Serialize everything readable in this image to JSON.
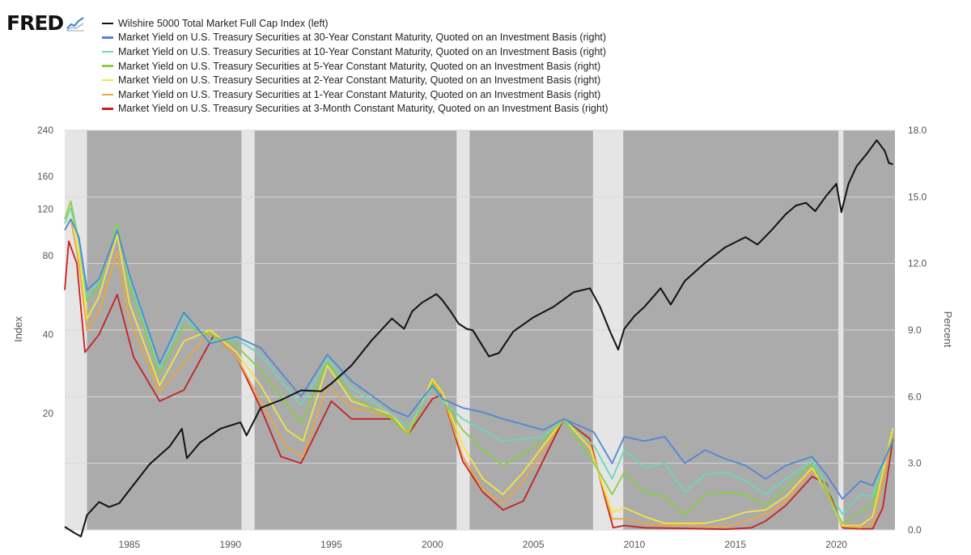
{
  "logo": {
    "text": "FRED"
  },
  "chart_data": {
    "type": "line",
    "colors": {
      "plot_background": "#ababab",
      "recession": "#e5e5e5",
      "gridline": "#d8d8d8"
    },
    "legend_position": "top",
    "x_ticks": [
      "1985",
      "1990",
      "1995",
      "2000",
      "2005",
      "2010",
      "2015",
      "2020"
    ],
    "xlim": [
      1981.8,
      2022.9
    ],
    "left_axis": {
      "label": "Index",
      "scale": "log",
      "range": [
        7.2,
        240
      ],
      "ticks": [
        "20",
        "40",
        "80",
        "120",
        "160",
        "240"
      ]
    },
    "right_axis": {
      "label": "Percent",
      "scale": "linear",
      "range": [
        0,
        18
      ],
      "ticks": [
        "0.0",
        "3.0",
        "6.0",
        "9.0",
        "12.0",
        "15.0",
        "18.0"
      ]
    },
    "recessions": [
      [
        1981.5,
        1982.9
      ],
      [
        1990.55,
        1991.2
      ],
      [
        2001.2,
        2001.85
      ],
      [
        2007.95,
        2009.45
      ],
      [
        2020.1,
        2020.35
      ]
    ],
    "series": [
      {
        "name": "Wilshire 5000 Total Market Full Cap Index (left)",
        "color": "#111111",
        "axis": "left",
        "x": [
          1981.8,
          1982.3,
          1982.6,
          1982.9,
          1983.5,
          1984.0,
          1984.5,
          1985.0,
          1986.0,
          1987.0,
          1987.6,
          1987.85,
          1988.5,
          1989.5,
          1990.0,
          1990.5,
          1990.8,
          1991.5,
          1992.5,
          1993.5,
          1994.5,
          1995.0,
          1996.0,
          1997.0,
          1998.0,
          1998.6,
          1999.0,
          1999.5,
          2000.2,
          2000.5,
          2000.9,
          2001.3,
          2001.7,
          2002.0,
          2002.5,
          2002.8,
          2003.3,
          2004.0,
          2005.0,
          2006.0,
          2007.0,
          2007.8,
          2008.3,
          2008.8,
          2009.2,
          2009.5,
          2010.0,
          2010.5,
          2011.3,
          2011.8,
          2012.5,
          2013.5,
          2014.5,
          2015.5,
          2016.1,
          2016.8,
          2017.5,
          2018.0,
          2018.5,
          2018.95,
          2019.5,
          2020.0,
          2020.25,
          2020.6,
          2021.0,
          2021.5,
          2022.0,
          2022.4,
          2022.6,
          2022.8
        ],
        "y": [
          7.4,
          7.0,
          6.8,
          8.2,
          9.2,
          8.8,
          9.1,
          10.2,
          12.8,
          15.0,
          17.5,
          13.5,
          15.5,
          17.5,
          18.0,
          18.5,
          16.5,
          21.0,
          22.5,
          24.5,
          24.3,
          26.0,
          30.5,
          38.0,
          46.0,
          42.0,
          49.0,
          53.0,
          57.0,
          54.0,
          49.0,
          44.0,
          42.0,
          41.5,
          36.0,
          33.0,
          34.0,
          41.0,
          46.5,
          51.0,
          58.0,
          60.0,
          51.0,
          41.0,
          35.0,
          42.0,
          47.0,
          51.0,
          60.0,
          52.0,
          64.0,
          75.0,
          86.0,
          94.0,
          88.0,
          100.0,
          115.0,
          124.0,
          127.0,
          118.0,
          135.0,
          150.0,
          117.0,
          150.0,
          175.0,
          195.0,
          220.0,
          200.0,
          180.0,
          178.0
        ]
      },
      {
        "name": "Market Yield on U.S. Treasury Securities at 30-Year Constant Maturity, Quoted on an Investment Basis (right)",
        "color": "#4f87d4",
        "axis": "right",
        "x": [
          1981.8,
          1982.1,
          1982.5,
          1982.9,
          1983.5,
          1984.4,
          1985.0,
          1986.5,
          1987.7,
          1989.0,
          1990.3,
          1991.5,
          1993.5,
          1994.8,
          1996.0,
          1998.0,
          1998.8,
          2000.0,
          2000.5,
          2001.5,
          2002.5,
          2003.5,
          2005.5,
          2006.5,
          2008.0,
          2008.9,
          2009.5,
          2010.5,
          2011.5,
          2012.5,
          2013.5,
          2014.5,
          2015.5,
          2016.5,
          2017.5,
          2018.8,
          2019.5,
          2020.3,
          2021.2,
          2021.8,
          2022.3,
          2022.8
        ],
        "y": [
          13.5,
          14.0,
          13.2,
          10.8,
          11.3,
          13.5,
          11.5,
          7.5,
          9.8,
          8.4,
          8.7,
          8.2,
          6.0,
          7.9,
          6.7,
          5.4,
          5.1,
          6.5,
          5.9,
          5.5,
          5.3,
          5.0,
          4.5,
          5.0,
          4.4,
          3.0,
          4.2,
          4.0,
          4.2,
          3.0,
          3.6,
          3.2,
          2.9,
          2.3,
          2.9,
          3.3,
          2.5,
          1.4,
          2.2,
          2.0,
          3.0,
          4.0
        ]
      },
      {
        "name": "Market Yield on U.S. Treasury Securities at 10-Year Constant Maturity, Quoted on an Investment Basis (right)",
        "color": "#6ad8b8",
        "axis": "right",
        "x": [
          1981.8,
          1982.1,
          1982.5,
          1982.9,
          1983.5,
          1984.4,
          1985.0,
          1986.5,
          1987.7,
          1989.0,
          1990.3,
          1991.5,
          1993.5,
          1994.8,
          1996.0,
          1998.0,
          1998.8,
          2000.0,
          2000.5,
          2001.5,
          2002.5,
          2003.5,
          2005.5,
          2006.5,
          2008.0,
          2008.9,
          2009.5,
          2010.5,
          2011.5,
          2012.5,
          2013.5,
          2014.5,
          2015.5,
          2016.5,
          2017.5,
          2018.8,
          2019.5,
          2020.3,
          2021.2,
          2021.8,
          2022.3,
          2022.8
        ],
        "y": [
          13.8,
          14.5,
          13.0,
          10.5,
          11.2,
          13.6,
          11.3,
          7.3,
          9.6,
          8.5,
          8.6,
          7.9,
          5.6,
          7.7,
          6.4,
          5.2,
          4.6,
          6.5,
          5.8,
          5.0,
          4.5,
          4.0,
          4.2,
          5.0,
          3.8,
          2.3,
          3.6,
          2.8,
          3.0,
          1.7,
          2.5,
          2.6,
          2.2,
          1.6,
          2.3,
          3.1,
          2.0,
          0.7,
          1.6,
          1.5,
          2.9,
          4.0
        ]
      },
      {
        "name": "Market Yield on U.S. Treasury Securities at 5-Year Constant Maturity, Quoted on an Investment Basis (right)",
        "color": "#86d040",
        "axis": "right",
        "x": [
          1981.8,
          1982.1,
          1982.5,
          1982.9,
          1983.5,
          1984.4,
          1985.0,
          1986.5,
          1987.7,
          1989.0,
          1990.3,
          1991.5,
          1993.5,
          1994.8,
          1996.0,
          1998.0,
          1998.8,
          2000.0,
          2000.5,
          2001.5,
          2002.5,
          2003.5,
          2005.5,
          2006.5,
          2008.0,
          2008.9,
          2009.5,
          2010.5,
          2011.5,
          2012.5,
          2013.5,
          2014.5,
          2015.5,
          2016.5,
          2017.5,
          2018.8,
          2019.5,
          2020.3,
          2021.2,
          2021.8,
          2022.3,
          2022.8
        ],
        "y": [
          14.0,
          14.8,
          13.0,
          10.3,
          11.0,
          13.8,
          11.0,
          7.0,
          9.2,
          8.8,
          8.3,
          7.2,
          4.8,
          7.6,
          6.0,
          5.0,
          4.3,
          6.6,
          5.9,
          4.5,
          3.6,
          2.9,
          4.0,
          5.0,
          3.0,
          1.6,
          2.6,
          1.7,
          1.5,
          0.7,
          1.6,
          1.7,
          1.6,
          1.1,
          1.9,
          3.0,
          1.7,
          0.3,
          0.8,
          1.2,
          2.9,
          4.2
        ]
      },
      {
        "name": "Market Yield on U.S. Treasury Securities at 2-Year Constant Maturity, Quoted on an Investment Basis (right)",
        "color": "#f3e63a",
        "axis": "right",
        "x": [
          1981.8,
          1982.1,
          1982.5,
          1982.9,
          1983.5,
          1984.4,
          1985.0,
          1986.5,
          1987.7,
          1989.0,
          1990.3,
          1991.5,
          1992.8,
          1993.6,
          1994.8,
          1996.0,
          1998.0,
          1998.8,
          2000.0,
          2000.5,
          2001.5,
          2002.5,
          2003.5,
          2004.5,
          2006.5,
          2007.8,
          2008.9,
          2009.5,
          2010.5,
          2011.5,
          2012.5,
          2013.5,
          2014.5,
          2015.5,
          2016.5,
          2017.5,
          2018.8,
          2019.5,
          2020.3,
          2021.2,
          2021.8,
          2022.3,
          2022.8
        ],
        "y": [
          14.0,
          14.5,
          12.5,
          9.5,
          10.5,
          13.3,
          10.2,
          6.5,
          8.5,
          9.0,
          8.0,
          6.5,
          4.5,
          4.0,
          7.4,
          5.8,
          5.2,
          4.3,
          6.8,
          6.2,
          3.8,
          2.3,
          1.6,
          2.6,
          5.0,
          3.7,
          0.8,
          1.0,
          0.6,
          0.3,
          0.3,
          0.3,
          0.5,
          0.8,
          0.9,
          1.5,
          2.8,
          1.7,
          0.2,
          0.2,
          0.6,
          2.6,
          4.6
        ]
      },
      {
        "name": "Market Yield on U.S. Treasury Securities at 1-Year Constant Maturity, Quoted on an Investment Basis (right)",
        "color": "#f0a43c",
        "axis": "right",
        "x": [
          1981.8,
          1982.1,
          1982.5,
          1982.9,
          1983.5,
          1984.4,
          1985.0,
          1986.5,
          1987.7,
          1989.0,
          1990.3,
          1991.5,
          1992.8,
          1993.6,
          1994.8,
          1996.0,
          1998.0,
          1998.8,
          2000.0,
          2000.5,
          2001.5,
          2002.5,
          2003.5,
          2004.5,
          2006.5,
          2007.8,
          2008.9,
          2009.5,
          2010.5,
          2011.5,
          2012.5,
          2013.5,
          2014.5,
          2015.5,
          2016.5,
          2017.5,
          2018.8,
          2019.5,
          2020.3,
          2021.2,
          2021.8,
          2022.3,
          2022.8
        ],
        "y": [
          13.5,
          14.0,
          12.0,
          9.0,
          9.8,
          12.5,
          9.5,
          6.2,
          7.5,
          9.0,
          7.8,
          5.8,
          3.7,
          3.3,
          6.5,
          5.5,
          5.1,
          4.4,
          6.7,
          6.1,
          3.3,
          1.8,
          1.2,
          2.2,
          5.0,
          3.9,
          0.5,
          0.5,
          0.3,
          0.2,
          0.2,
          0.15,
          0.15,
          0.4,
          0.7,
          1.3,
          2.7,
          1.9,
          0.15,
          0.1,
          0.2,
          2.2,
          4.3
        ]
      },
      {
        "name": "Market Yield on U.S. Treasury Securities at 3-Month Constant Maturity, Quoted on an Investment Basis (right)",
        "color": "#c8201e",
        "axis": "right",
        "x": [
          1981.8,
          1982.0,
          1982.4,
          1982.8,
          1983.5,
          1984.4,
          1985.2,
          1986.5,
          1987.7,
          1989.2,
          1990.3,
          1991.5,
          1992.5,
          1993.5,
          1995.0,
          1996.0,
          1998.0,
          1998.8,
          2000.0,
          2000.5,
          2001.5,
          2002.5,
          2003.5,
          2004.5,
          2006.5,
          2007.8,
          2008.5,
          2008.95,
          2009.5,
          2010.5,
          2012.5,
          2014.5,
          2015.8,
          2016.5,
          2017.5,
          2018.8,
          2019.5,
          2020.3,
          2021.2,
          2021.8,
          2022.3,
          2022.8
        ],
        "y": [
          10.8,
          13.0,
          12.0,
          8.0,
          8.8,
          10.6,
          7.8,
          5.8,
          6.3,
          8.8,
          7.8,
          5.5,
          3.3,
          3.0,
          5.8,
          5.0,
          5.0,
          4.3,
          5.9,
          6.1,
          3.1,
          1.7,
          0.9,
          1.3,
          5.0,
          4.1,
          1.6,
          0.1,
          0.2,
          0.1,
          0.07,
          0.03,
          0.1,
          0.4,
          1.1,
          2.4,
          2.1,
          0.1,
          0.05,
          0.05,
          1.0,
          4.1
        ]
      }
    ]
  }
}
